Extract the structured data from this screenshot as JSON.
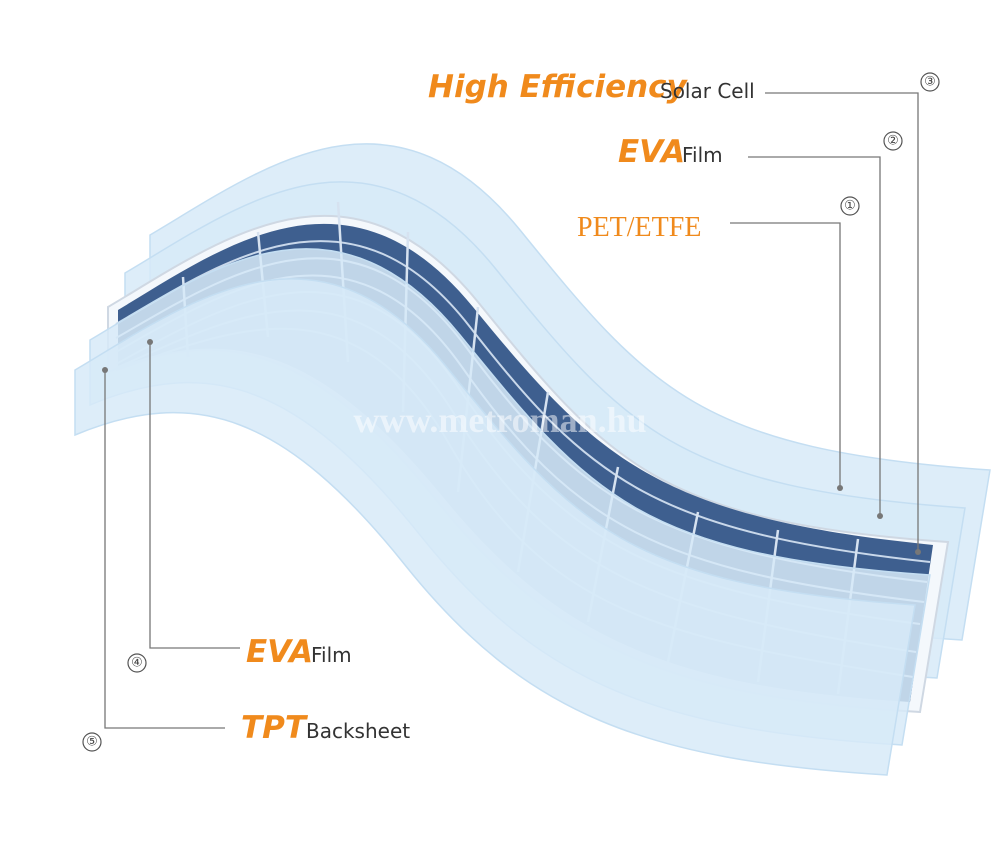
{
  "labels": [
    {
      "number": "③",
      "bold": "High Efficiency",
      "rest": "Solar Cell"
    },
    {
      "number": "②",
      "bold": "EVA",
      "rest": "Film"
    },
    {
      "number": "①",
      "text": "PET/ETFE"
    },
    {
      "number": "④",
      "bold": "EVA",
      "rest": "Film"
    },
    {
      "number": "⑤",
      "bold": "TPT",
      "rest": "Backsheet"
    }
  ],
  "watermark": "www.metroman.hu"
}
